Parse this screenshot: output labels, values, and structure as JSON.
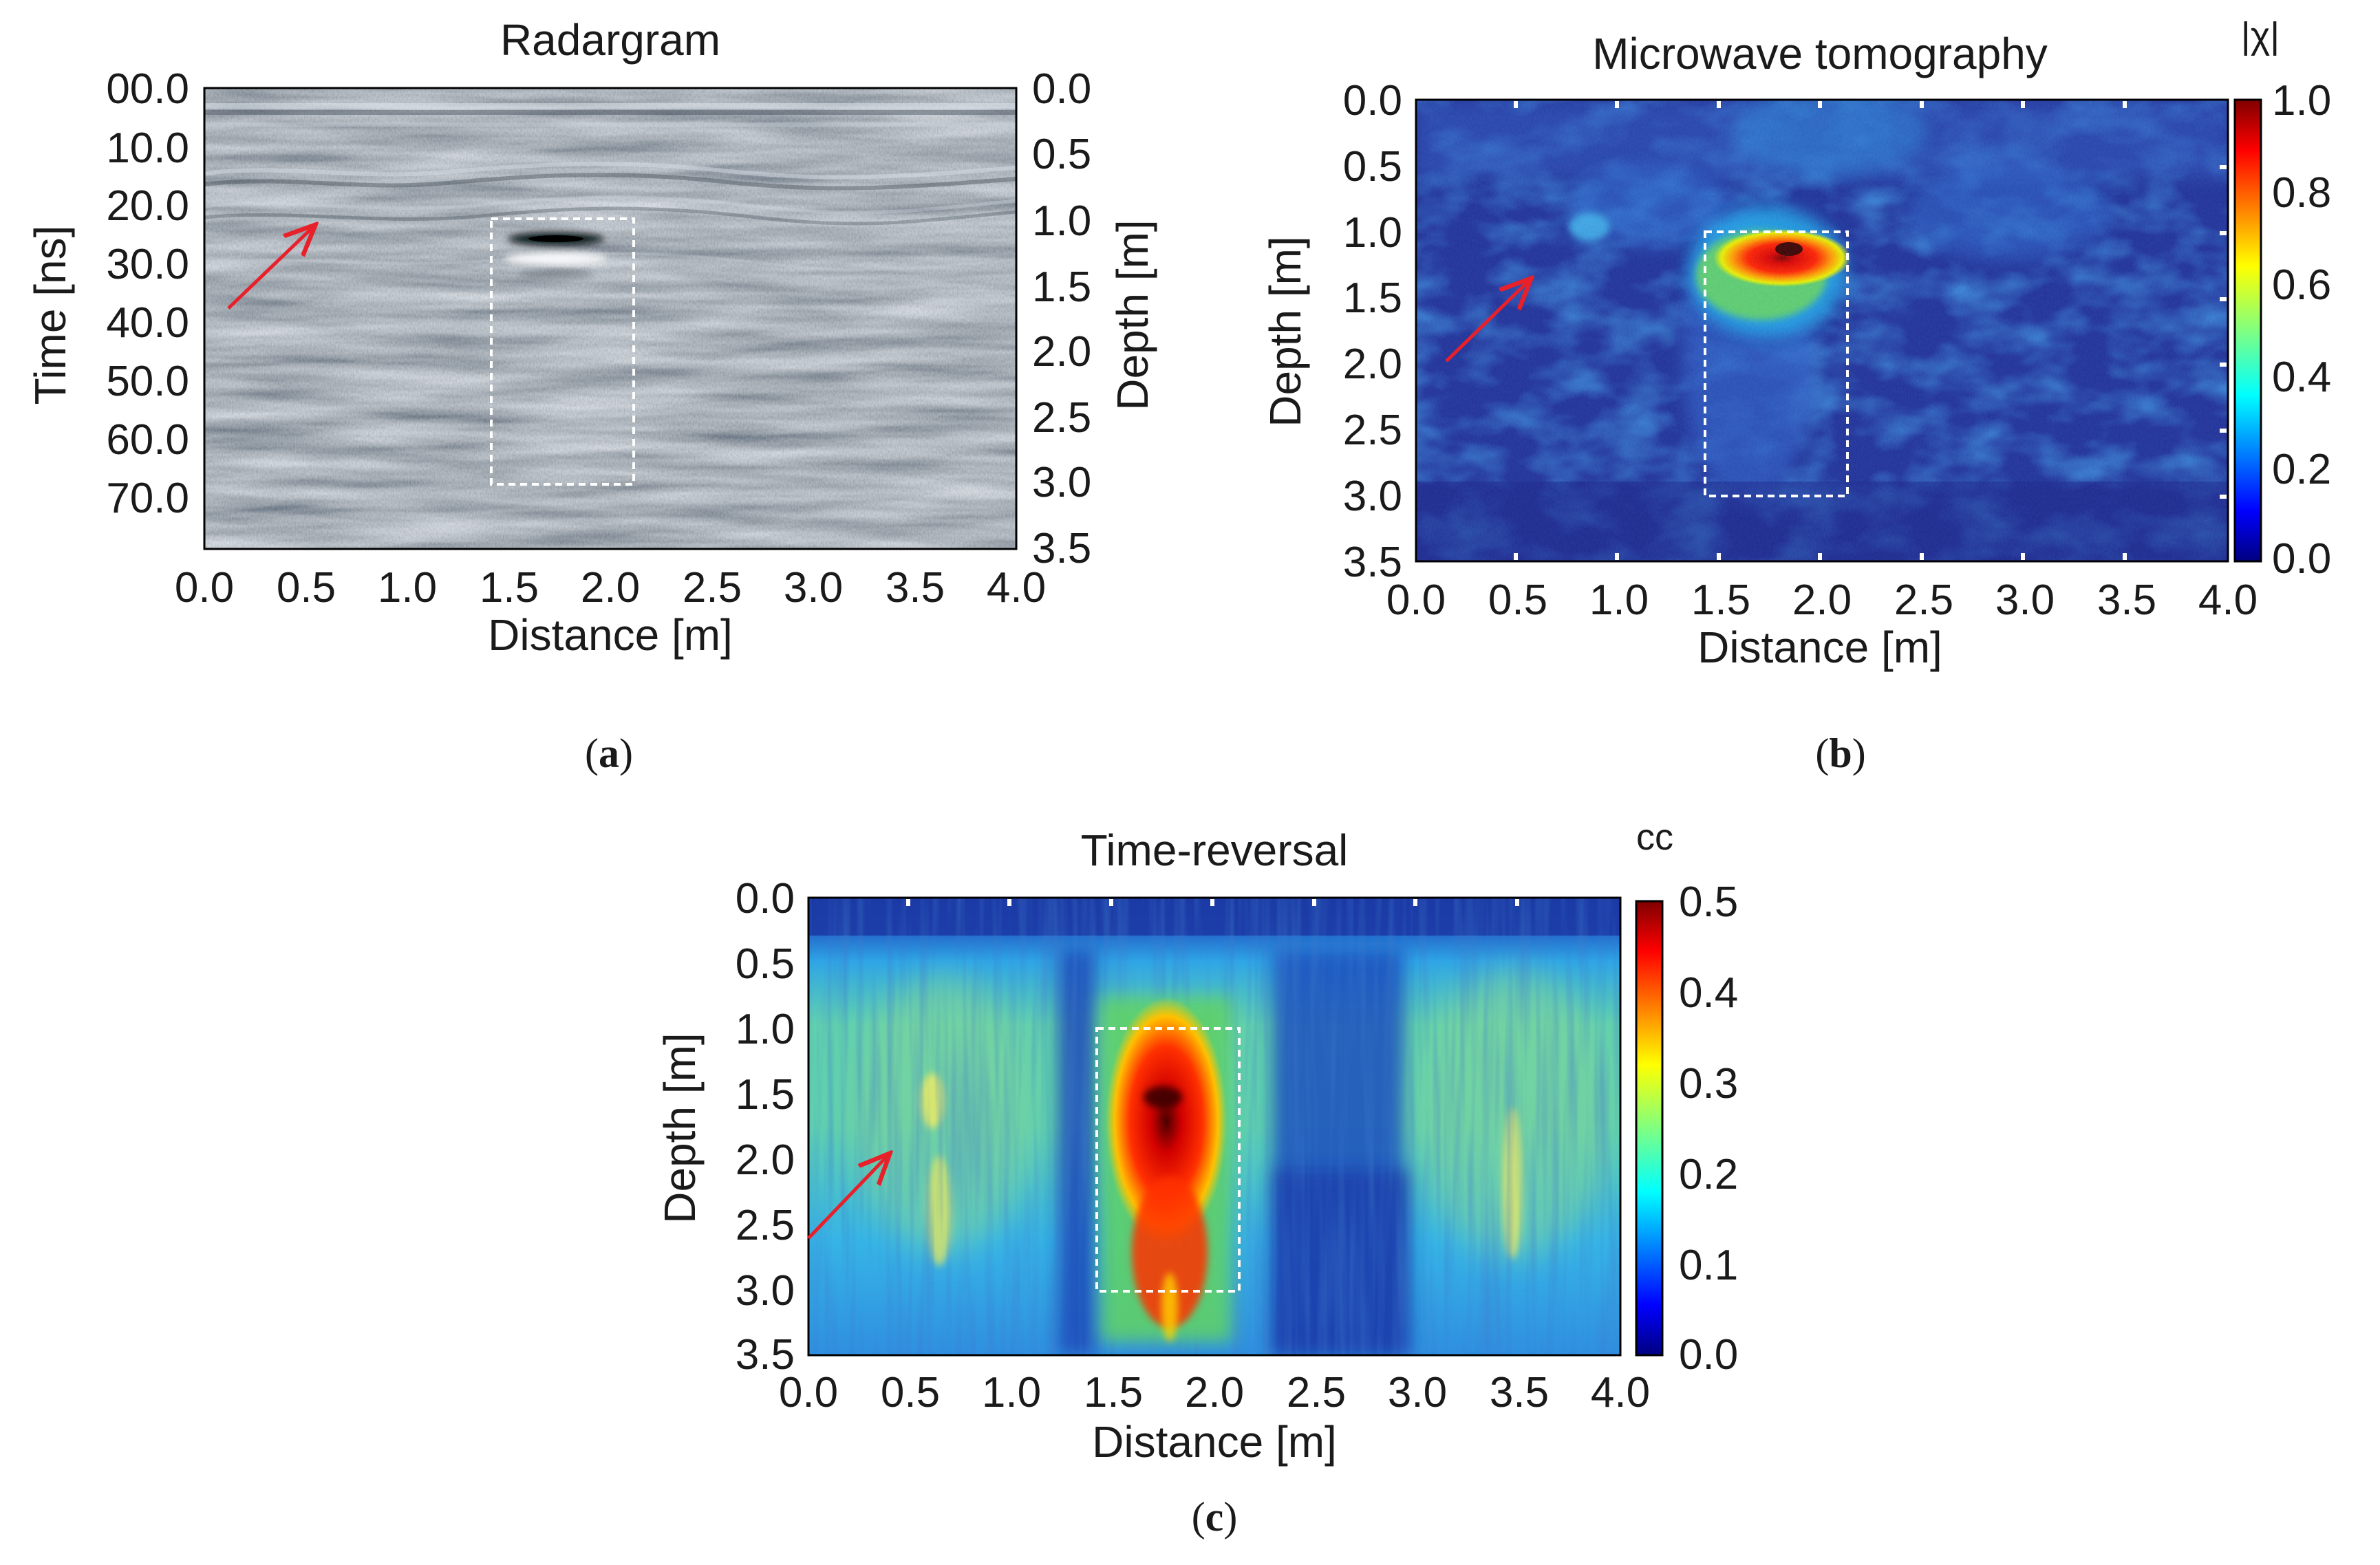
{
  "chart_data": [
    {
      "type": "heatmap",
      "panel": "(a)",
      "panel_letter": "a",
      "title": "Radargram",
      "xlabel": "Distance [m]",
      "ylabel": "Time [ns]",
      "y2label": "Depth [m]",
      "colormap": "gray",
      "xlim": [
        0.0,
        4.0
      ],
      "xticks": [
        "0.0",
        "0.5",
        "1.0",
        "1.5",
        "2.0",
        "2.5",
        "3.0",
        "3.5",
        "4.0"
      ],
      "ylim": [
        0,
        80
      ],
      "yticks": [
        "00.0",
        "10.0",
        "20.0",
        "30.0",
        "40.0",
        "50.0",
        "60.0",
        "70.0"
      ],
      "y2lim": [
        0.0,
        3.5
      ],
      "y2ticks": [
        "0.0",
        "0.5",
        "1.0",
        "1.5",
        "2.0",
        "2.5",
        "3.0",
        "3.5"
      ],
      "target_box": {
        "x_range": [
          1.42,
          2.12
        ],
        "y_range": [
          22.0,
          67.0
        ],
        "units": "m / ns"
      },
      "arrow": {
        "from": [
          0.12,
          37.0
        ],
        "to": [
          0.55,
          23.0
        ]
      },
      "reflection": {
        "x_center": 1.8,
        "y_time": 26.0
      }
    },
    {
      "type": "heatmap",
      "panel": "(b)",
      "panel_letter": "b",
      "title": "Microwave tomography",
      "xlabel": "Distance [m]",
      "ylabel": "Depth [m]",
      "colorbar_label": "|χ|",
      "colormap": "jet",
      "xlim": [
        0.0,
        4.0
      ],
      "xticks": [
        "0.0",
        "0.5",
        "1.0",
        "1.5",
        "2.0",
        "2.5",
        "3.0",
        "3.5",
        "4.0"
      ],
      "ylim": [
        0.0,
        3.5
      ],
      "yticks": [
        "0.0",
        "0.5",
        "1.0",
        "1.5",
        "2.0",
        "2.5",
        "3.0",
        "3.5"
      ],
      "clim": [
        0.0,
        1.0
      ],
      "cticks": [
        "1.0",
        "0.8",
        "0.6",
        "0.4",
        "0.2",
        "0.0"
      ],
      "target_box": {
        "x_range": [
          1.42,
          2.12
        ],
        "y_range": [
          1.0,
          3.0
        ]
      },
      "arrow": {
        "from": [
          0.15,
          1.97
        ],
        "to": [
          0.57,
          1.35
        ]
      },
      "peak": {
        "x": 1.8,
        "y": 1.12,
        "value": 1.0
      }
    },
    {
      "type": "heatmap",
      "panel": "(c)",
      "panel_letter": "c",
      "title": "Time-reversal",
      "xlabel": "Distance [m]",
      "ylabel": "Depth [m]",
      "colorbar_label": "cc",
      "colormap": "jet",
      "xlim": [
        0.0,
        4.0
      ],
      "xticks": [
        "0.0",
        "0.5",
        "1.0",
        "1.5",
        "2.0",
        "2.5",
        "3.0",
        "3.5",
        "4.0"
      ],
      "ylim": [
        0.0,
        3.5
      ],
      "yticks": [
        "0.0",
        "0.5",
        "1.0",
        "1.5",
        "2.0",
        "2.5",
        "3.0",
        "3.5"
      ],
      "clim": [
        0.0,
        0.5
      ],
      "cticks": [
        "0.5",
        "0.4",
        "0.3",
        "0.2",
        "0.1",
        "0.0"
      ],
      "target_box": {
        "x_range": [
          1.42,
          2.12
        ],
        "y_range": [
          1.0,
          3.0
        ]
      },
      "arrow": {
        "from": [
          0.0,
          2.6
        ],
        "to": [
          0.4,
          1.98
        ]
      },
      "peak": {
        "x": 1.73,
        "y": 1.52,
        "value": 0.5
      }
    }
  ]
}
